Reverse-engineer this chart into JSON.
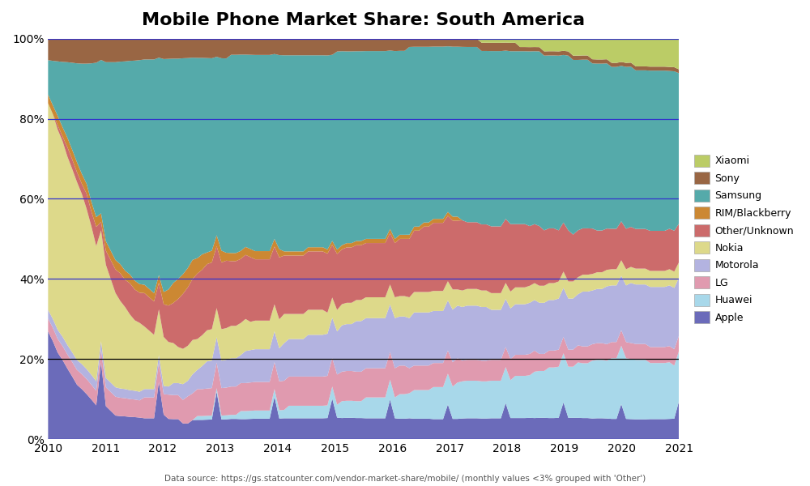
{
  "title": "Mobile Phone Market Share: South America",
  "footnote": "Data source: https://gs.statcounter.com/vendor-market-share/mobile/ (monthly values <3% grouped with 'Other')",
  "series_colors": {
    "Apple": "#6b6bba",
    "Huawei": "#a8d8ea",
    "LG": "#e09aaf",
    "Motorola": "#b3b3e0",
    "Nokia": "#ddd98a",
    "Other/Unknown": "#cc6b6b",
    "RIM/Blackberry": "#cc8833",
    "Samsung": "#55aaaa",
    "Sony": "#996644",
    "Xiaomi": "#bbcc66"
  },
  "legend_order": [
    "Xiaomi",
    "Sony",
    "Samsung",
    "RIM/Blackberry",
    "Other/Unknown",
    "Nokia",
    "Motorola",
    "LG",
    "Huawei",
    "Apple"
  ],
  "stack_order": [
    "Apple",
    "Huawei",
    "LG",
    "Motorola",
    "Nokia",
    "Other/Unknown",
    "RIM/Blackberry",
    "Samsung",
    "Sony",
    "Xiaomi"
  ],
  "background_color": "#ffffff",
  "yticks": [
    0,
    20,
    40,
    60,
    80,
    100
  ],
  "xticks": [
    2010,
    2011,
    2012,
    2013,
    2014,
    2015,
    2016,
    2017,
    2018,
    2019,
    2020,
    2021
  ],
  "grid_lines": {
    "blue": [
      0,
      40,
      60,
      80,
      100
    ],
    "black": [
      20
    ]
  }
}
